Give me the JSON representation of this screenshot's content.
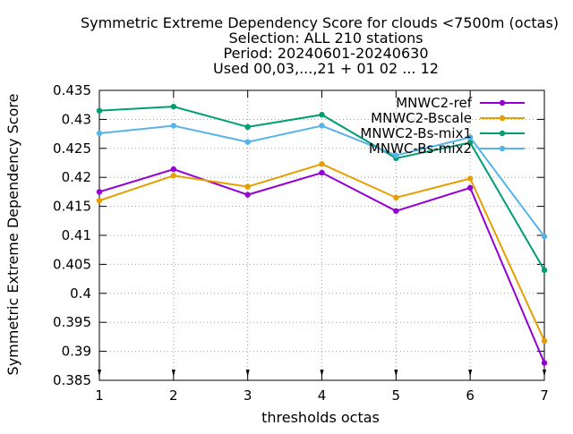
{
  "chart_data": {
    "type": "line",
    "title_lines": [
      "Symmetric Extreme Dependency Score  for clouds <7500m (octas)",
      "Selection: ALL    210 stations",
      "Period: 20240601-20240630",
      "Used 00,03,...,21 + 01 02 ... 12"
    ],
    "xlabel": "thresholds octas",
    "ylabel": "Symmetric Extreme Dependency Score",
    "xlim": [
      1,
      7
    ],
    "ylim": [
      0.385,
      0.435
    ],
    "x": [
      1,
      2,
      3,
      4,
      5,
      6,
      7
    ],
    "x_ticks": [
      "1",
      "2",
      "3",
      "4",
      "5",
      "6",
      "7"
    ],
    "y_ticks": [
      "0.385",
      "0.39",
      "0.395",
      "0.4",
      "0.405",
      "0.41",
      "0.415",
      "0.42",
      "0.425",
      "0.43",
      "0.435"
    ],
    "grid": true,
    "legend_position": "top-right",
    "series": [
      {
        "name": "MNWC2-ref",
        "color": "#9400d3",
        "values": [
          0.4175,
          0.4214,
          0.417,
          0.4208,
          0.4142,
          0.4182,
          0.388
        ]
      },
      {
        "name": "MNWC2-Bscale",
        "color": "#e69f00",
        "values": [
          0.416,
          0.4203,
          0.4184,
          0.4223,
          0.4165,
          0.4198,
          0.3918
        ]
      },
      {
        "name": "MNWC2-Bs-mix1",
        "color": "#009e73",
        "values": [
          0.4315,
          0.4322,
          0.4287,
          0.4308,
          0.4233,
          0.426,
          0.404
        ]
      },
      {
        "name": "MNWC-Bs-mix2",
        "color": "#56b4e9",
        "values": [
          0.4276,
          0.4289,
          0.4261,
          0.4289,
          0.4238,
          0.4269,
          0.4098
        ]
      }
    ]
  }
}
